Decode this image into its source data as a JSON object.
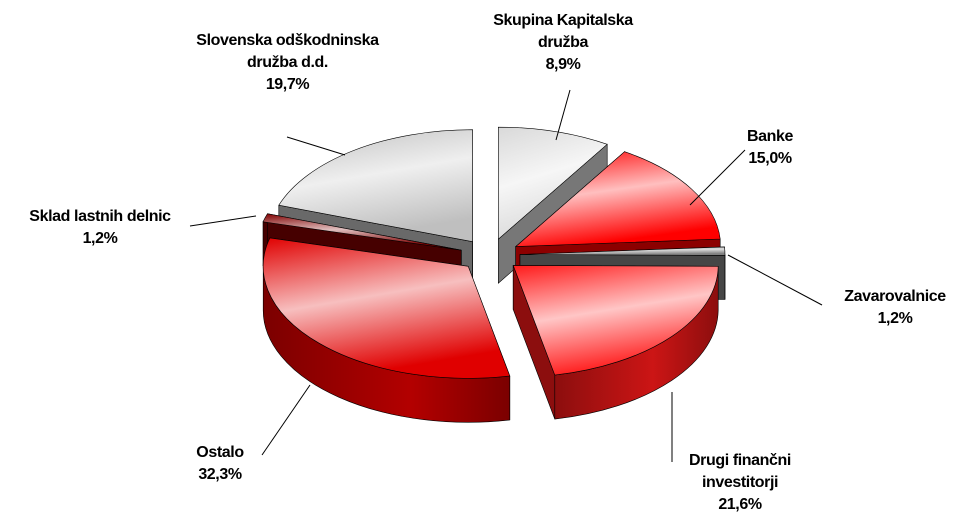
{
  "chart_data": {
    "type": "pie3d",
    "categories": [
      "Skupina Kapitalska družba",
      "Banke",
      "Zavarovalnice",
      "Drugi finančni investitorji",
      "Ostalo",
      "Sklad lastnih delnic",
      "Slovenska odškodninska družba d.d."
    ],
    "values": [
      8.9,
      15.0,
      1.2,
      21.6,
      32.3,
      1.2,
      19.7
    ],
    "value_labels": [
      "8,9%",
      "15,0%",
      "1,2%",
      "21,6%",
      "32,3%",
      "1,2%",
      "19,7%"
    ],
    "colors": [
      "#d9d9d9",
      "#ff0000",
      "#808080",
      "#ff1a1a",
      "#e00000",
      "#800000",
      "#bfbfbf"
    ]
  }
}
